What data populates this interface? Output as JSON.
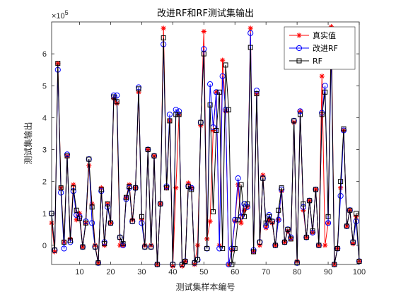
{
  "chart_data": {
    "type": "line",
    "title": "改进RF和RF测试集输出",
    "xlabel": "测试集样本编号",
    "ylabel": "测试集输出",
    "y_scale_label": "×10",
    "y_scale_exponent": "5",
    "xlim": [
      1,
      100
    ],
    "ylim": [
      -0.6,
      7
    ],
    "x_ticks": [
      10,
      20,
      30,
      40,
      50,
      60,
      70,
      80,
      90,
      100
    ],
    "y_ticks": [
      0,
      1,
      2,
      3,
      4,
      5,
      6
    ],
    "grid": false,
    "legend_position": "top-right",
    "x": [
      1,
      2,
      3,
      4,
      5,
      6,
      7,
      8,
      9,
      10,
      11,
      12,
      13,
      14,
      15,
      16,
      17,
      18,
      19,
      20,
      21,
      22,
      23,
      24,
      25,
      26,
      27,
      28,
      29,
      30,
      31,
      32,
      33,
      34,
      35,
      36,
      37,
      38,
      39,
      40,
      41,
      42,
      43,
      44,
      45,
      46,
      47,
      48,
      49,
      50,
      51,
      52,
      53,
      54,
      55,
      56,
      57,
      58,
      59,
      60,
      61,
      62,
      63,
      64,
      65,
      66,
      67,
      68,
      69,
      70,
      71,
      72,
      73,
      74,
      75,
      76,
      77,
      78,
      79,
      80,
      81,
      82,
      83,
      84,
      85,
      86,
      87,
      88,
      89,
      90,
      91,
      92,
      93,
      94,
      95,
      96,
      97,
      98,
      99,
      100
    ],
    "series": [
      {
        "name": "真实值",
        "color": "#ff0000",
        "marker": "asterisk",
        "values": [
          0.7,
          -0.2,
          5.7,
          1.8,
          0.1,
          2.8,
          0.2,
          1.9,
          0.8,
          1.0,
          -0.05,
          0.7,
          2.5,
          1.3,
          0.0,
          -0.55,
          1.8,
          0.0,
          1.3,
          0.7,
          4.6,
          4.45,
          0.0,
          0.0,
          1.5,
          1.9,
          0.8,
          1.8,
          4.8,
          0.8,
          0.0,
          3.0,
          0.0,
          2.8,
          -0.6,
          1.3,
          6.8,
          1.8,
          3.9,
          -0.65,
          1.8,
          4.1,
          -0.65,
          -0.5,
          1.95,
          1.8,
          -0.6,
          0.0,
          3.75,
          6.7,
          0.2,
          0.75,
          3.6,
          4.8,
          0.0,
          5.8,
          4.2,
          -0.6,
          -0.15,
          0.75,
          1.9,
          0.7,
          1.1,
          1.2,
          6.8,
          -0.2,
          4.75,
          0.0,
          2.2,
          0.55,
          0.8,
          0.7,
          0.0,
          0.8,
          1.7,
          0.1,
          0.45,
          0.2,
          3.85,
          -0.5,
          4.2,
          1.1,
          0.25,
          1.4,
          0.4,
          1.75,
          0.0,
          5.3,
          0.0,
          0.7,
          6.85,
          -0.6,
          -0.1,
          1.8,
          3.6,
          0.6,
          1.1,
          0.05,
          0.9,
          -0.5
        ]
      },
      {
        "name": "改进RF",
        "color": "#0000ff",
        "marker": "circle",
        "values": [
          1.0,
          -0.15,
          5.5,
          1.65,
          -0.1,
          2.85,
          0.1,
          1.7,
          0.95,
          0.9,
          -0.05,
          0.75,
          2.7,
          0.7,
          -0.05,
          -0.55,
          1.7,
          0.1,
          1.2,
          0.7,
          4.7,
          4.7,
          0.25,
          0.0,
          1.45,
          1.8,
          0.75,
          1.8,
          4.95,
          0.7,
          -0.05,
          3.0,
          -0.05,
          2.8,
          -0.6,
          1.3,
          6.3,
          1.85,
          4.1,
          -0.6,
          4.25,
          4.2,
          -0.6,
          -0.5,
          1.85,
          1.8,
          -0.55,
          -0.45,
          3.85,
          6.15,
          -0.1,
          5.05,
          3.7,
          4.8,
          -0.1,
          5.3,
          4.25,
          -0.6,
          -0.1,
          0.8,
          2.1,
          0.9,
          1.3,
          1.2,
          6.65,
          -0.15,
          4.85,
          0.1,
          2.1,
          0.6,
          0.95,
          0.75,
          0.0,
          0.8,
          1.75,
          0.1,
          0.5,
          0.25,
          3.9,
          -0.55,
          4.2,
          1.2,
          0.25,
          1.4,
          0.4,
          1.75,
          0.0,
          4.15,
          5.0,
          0.7,
          6.15,
          -0.6,
          -0.1,
          1.55,
          3.6,
          0.6,
          1.1,
          0.1,
          0.75,
          -0.5
        ]
      },
      {
        "name": "RF",
        "color": "#000000",
        "marker": "square",
        "values": [
          1.0,
          -0.15,
          5.7,
          1.8,
          0.1,
          2.8,
          0.15,
          1.8,
          1.1,
          0.85,
          -0.05,
          0.7,
          2.7,
          1.2,
          -0.05,
          -0.55,
          1.75,
          0.05,
          1.3,
          0.7,
          4.65,
          4.5,
          0.25,
          0.05,
          1.5,
          1.85,
          0.75,
          1.8,
          4.9,
          0.9,
          -0.05,
          3.0,
          -0.05,
          2.8,
          -0.6,
          1.3,
          6.5,
          1.8,
          3.9,
          -0.6,
          4.1,
          4.1,
          -0.6,
          -0.5,
          1.85,
          1.75,
          -0.55,
          -0.45,
          3.85,
          6.0,
          -0.1,
          4.4,
          1.05,
          3.6,
          4.8,
          -0.1,
          5.65,
          4.25,
          -0.6,
          -0.1,
          0.8,
          1.9,
          0.9,
          1.3,
          6.2,
          -0.2,
          4.75,
          0.1,
          2.1,
          0.7,
          0.9,
          0.75,
          0.0,
          1.1,
          1.8,
          0.1,
          0.5,
          0.2,
          3.9,
          -0.55,
          4.1,
          1.3,
          0.25,
          1.4,
          0.45,
          1.75,
          0.0,
          4.1,
          4.8,
          0.9,
          6.55,
          -0.6,
          -0.1,
          2.0,
          3.65,
          0.6,
          1.1,
          0.1,
          1.0,
          -0.5
        ]
      }
    ]
  }
}
